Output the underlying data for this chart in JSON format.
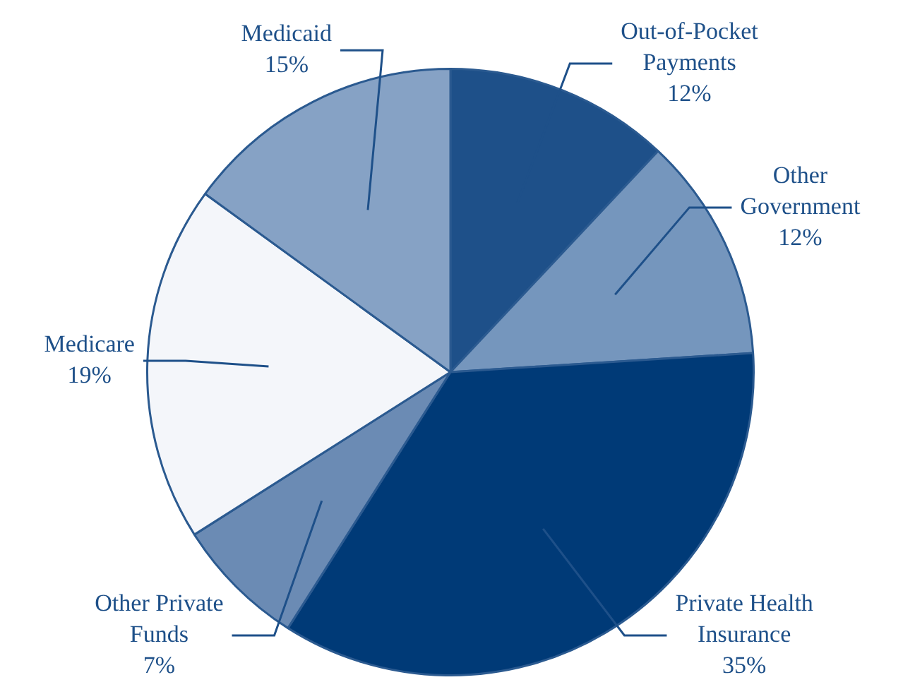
{
  "chart_data": {
    "type": "pie",
    "categories": [
      "Out-of-Pocket Payments",
      "Other Government",
      "Private Health Insurance",
      "Other Private Funds",
      "Medicare",
      "Medicaid"
    ],
    "values": [
      12,
      12,
      35,
      7,
      19,
      15
    ],
    "colors": [
      "#1e5089",
      "#7596bd",
      "#003a77",
      "#6b8bb4",
      "#f4f6fa",
      "#86a2c5"
    ],
    "value_labels": [
      "12%",
      "12%",
      "35%",
      "7%",
      "19%",
      "15%"
    ],
    "legend": false
  }
}
